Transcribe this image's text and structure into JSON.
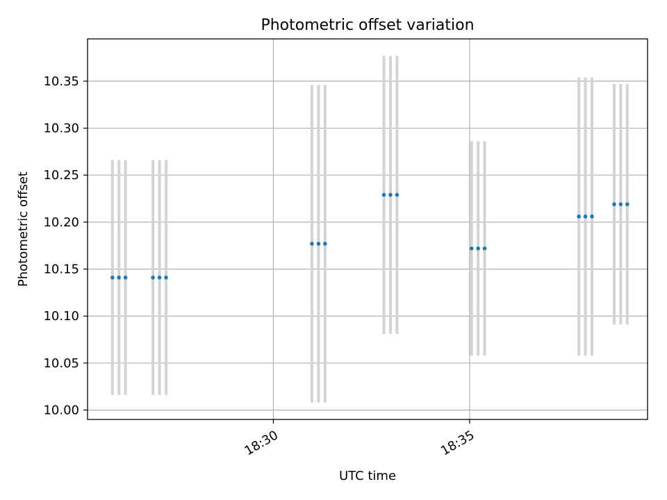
{
  "chart_data": {
    "type": "scatter",
    "title": "Photometric offset variation",
    "xlabel": "UTC time",
    "ylabel": "Photometric offset",
    "x_range_minutes": [
      "18:25:16",
      "18:39:32"
    ],
    "ylim": [
      9.99,
      10.395
    ],
    "yticks": [
      10.0,
      10.05,
      10.1,
      10.15,
      10.2,
      10.25,
      10.3,
      10.35
    ],
    "xticks": [
      "18:30",
      "18:35"
    ],
    "grid": true,
    "colors": {
      "marker": "#1f77b4",
      "errorbar": "#d3d3d3",
      "grid": "#b0b0b0"
    },
    "points": [
      {
        "x": "18:25:54",
        "y": 10.141,
        "yerr": 0.125
      },
      {
        "x": "18:26:04",
        "y": 10.141,
        "yerr": 0.125
      },
      {
        "x": "18:26:14",
        "y": 10.141,
        "yerr": 0.125
      },
      {
        "x": "18:26:56",
        "y": 10.141,
        "yerr": 0.125
      },
      {
        "x": "18:27:06",
        "y": 10.141,
        "yerr": 0.125
      },
      {
        "x": "18:27:16",
        "y": 10.141,
        "yerr": 0.125
      },
      {
        "x": "18:30:59",
        "y": 10.177,
        "yerr": 0.169
      },
      {
        "x": "18:31:09",
        "y": 10.177,
        "yerr": 0.169
      },
      {
        "x": "18:31:19",
        "y": 10.177,
        "yerr": 0.169
      },
      {
        "x": "18:32:49",
        "y": 10.229,
        "yerr": 0.148
      },
      {
        "x": "18:32:59",
        "y": 10.229,
        "yerr": 0.148
      },
      {
        "x": "18:33:09",
        "y": 10.229,
        "yerr": 0.148
      },
      {
        "x": "18:35:03",
        "y": 10.172,
        "yerr": 0.114
      },
      {
        "x": "18:35:13",
        "y": 10.172,
        "yerr": 0.114
      },
      {
        "x": "18:35:23",
        "y": 10.172,
        "yerr": 0.114
      },
      {
        "x": "18:37:47",
        "y": 10.206,
        "yerr": 0.148
      },
      {
        "x": "18:37:57",
        "y": 10.206,
        "yerr": 0.148
      },
      {
        "x": "18:38:07",
        "y": 10.206,
        "yerr": 0.148
      },
      {
        "x": "18:38:41",
        "y": 10.219,
        "yerr": 0.128
      },
      {
        "x": "18:38:51",
        "y": 10.219,
        "yerr": 0.128
      },
      {
        "x": "18:39:01",
        "y": 10.219,
        "yerr": 0.128
      }
    ]
  }
}
